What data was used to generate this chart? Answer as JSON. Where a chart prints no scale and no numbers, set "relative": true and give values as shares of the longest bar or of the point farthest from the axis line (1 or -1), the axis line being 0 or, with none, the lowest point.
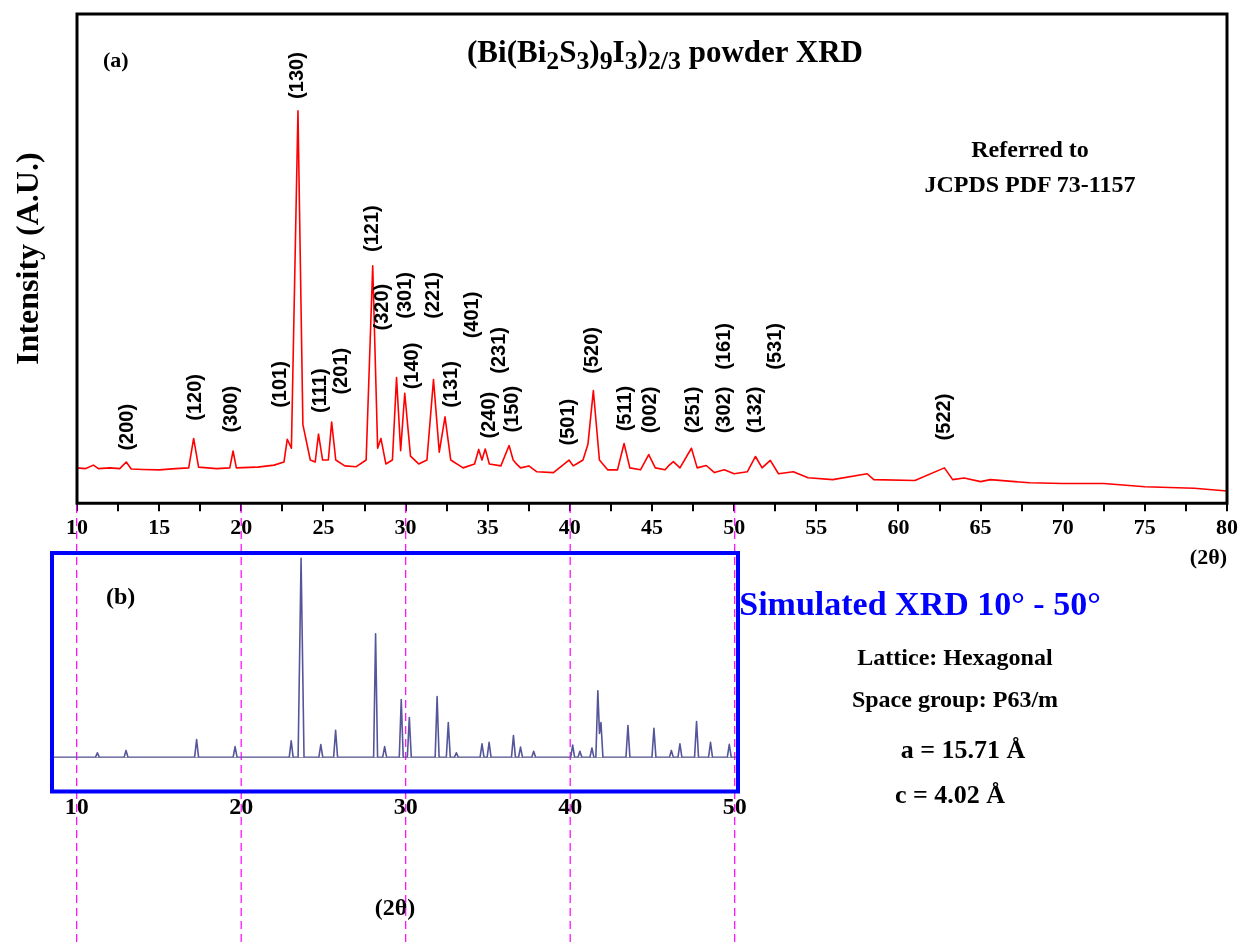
{
  "chart_data": [
    {
      "type": "line",
      "title": "(Bi(Bi$_{2}$S$_{3}$)$_{9}$I$_{3}$)$_{2/3}$ powder  XRD",
      "xlabel": "(2θ)",
      "ylabel": "Intensity (A.U.)",
      "relative": true,
      "tick_labels": "x",
      "color": "#ff0000",
      "xlim": [
        10,
        80
      ],
      "xticks": [
        10,
        {
          "value": 12.5,
          "label": null
        },
        15,
        {
          "value": 17.5,
          "label": null
        },
        20,
        {
          "value": 22.5,
          "label": null
        },
        25,
        {
          "value": 27.5,
          "label": null
        },
        30,
        {
          "value": 32.5,
          "label": null
        },
        35,
        {
          "value": 37.5,
          "label": null
        },
        40,
        {
          "value": 42.5,
          "label": null
        },
        45,
        {
          "value": 47.5,
          "label": null
        },
        50,
        {
          "value": 52.5,
          "label": null
        },
        55,
        {
          "value": 57.5,
          "label": null
        },
        60,
        {
          "value": 62.5,
          "label": null
        },
        65,
        {
          "value": 67.5,
          "label": null
        },
        70,
        {
          "value": 72.5,
          "label": null
        },
        75,
        {
          "value": 77.5,
          "label": null
        },
        80
      ],
      "x": [
        10,
        10.5,
        11,
        11.3,
        12,
        12.6,
        13.0,
        13.3,
        14,
        15,
        16,
        16.8,
        17.1,
        17.4,
        18.5,
        19.3,
        19.5,
        19.7,
        21,
        22,
        22.6,
        22.8,
        23.05,
        23.45,
        23.75,
        24.2,
        24.5,
        24.7,
        24.95,
        25.3,
        25.5,
        25.75,
        26.3,
        27,
        27.6,
        28.0,
        28.3,
        28.5,
        28.8,
        29.2,
        29.45,
        29.7,
        29.95,
        30.3,
        30.8,
        31.3,
        31.7,
        32.05,
        32.4,
        32.75,
        33.5,
        34.2,
        34.45,
        34.65,
        34.85,
        35.1,
        35.8,
        36.3,
        36.55,
        36.75,
        37.0,
        37.5,
        38,
        39,
        39.95,
        40.2,
        40.4,
        40.8,
        41.1,
        41.43,
        41.8,
        42.3,
        42.9,
        43.3,
        43.65,
        44.3,
        44.8,
        45.2,
        45.8,
        46.0,
        46.3,
        46.7,
        47.4,
        47.75,
        48.3,
        48.8,
        49.4,
        50,
        50.8,
        51.3,
        51.7,
        52.2,
        52.7,
        53.6,
        54.5,
        56,
        58.1,
        58.5,
        61,
        62.8,
        63.3,
        64,
        65,
        65.6,
        68,
        70,
        72.5,
        75,
        78,
        80
      ],
      "values": [
        0.09,
        0.088,
        0.097,
        0.088,
        0.09,
        0.088,
        0.105,
        0.087,
        0.086,
        0.085,
        0.088,
        0.09,
        0.165,
        0.092,
        0.088,
        0.09,
        0.133,
        0.09,
        0.092,
        0.097,
        0.105,
        0.163,
        0.14,
        1.0,
        0.2,
        0.11,
        0.105,
        0.176,
        0.11,
        0.11,
        0.207,
        0.11,
        0.095,
        0.093,
        0.11,
        0.605,
        0.14,
        0.165,
        0.1,
        0.11,
        0.32,
        0.134,
        0.28,
        0.12,
        0.1,
        0.11,
        0.315,
        0.13,
        0.22,
        0.11,
        0.09,
        0.1,
        0.137,
        0.11,
        0.138,
        0.1,
        0.095,
        0.147,
        0.11,
        0.1,
        0.09,
        0.095,
        0.08,
        0.078,
        0.11,
        0.095,
        0.1,
        0.11,
        0.15,
        0.287,
        0.11,
        0.085,
        0.085,
        0.152,
        0.09,
        0.085,
        0.124,
        0.09,
        0.085,
        0.095,
        0.106,
        0.09,
        0.14,
        0.09,
        0.096,
        0.078,
        0.085,
        0.075,
        0.08,
        0.119,
        0.09,
        0.109,
        0.075,
        0.08,
        0.065,
        0.06,
        0.075,
        0.06,
        0.058,
        0.09,
        0.06,
        0.064,
        0.055,
        0.06,
        0.052,
        0.05,
        0.05,
        0.042,
        0.038,
        0.031
      ],
      "annotations": [
        "(a)",
        "Referred to\nJCPDS PDF 73-1157",
        "(200)",
        "(120)",
        "(300)",
        "(101)",
        "(130)",
        "(111)",
        "(201)",
        "(121)",
        "(320)",
        "(301)",
        "(140)",
        "(221)",
        "(131)",
        "(401)",
        "(240)",
        "(231)",
        "(150)",
        "(501)",
        "(520)",
        "(511)",
        "(002)",
        "(251)",
        "(302)",
        "(161)",
        "(132)",
        "(531)",
        "(522)"
      ]
    },
    {
      "type": "line",
      "title": "Simulated XRD 10° - 50°",
      "xlabel": "(2θ)",
      "relative": true,
      "tick_labels": "x",
      "color": "#55559a",
      "xlim": [
        8.5,
        50.2
      ],
      "xticks": [
        10,
        20,
        30,
        40,
        50
      ],
      "x": [
        8.5,
        11.14,
        11.26,
        11.38,
        12.88,
        13.0,
        13.12,
        17.17,
        17.29,
        17.41,
        19.51,
        19.63,
        19.75,
        22.92,
        23.04,
        23.16,
        23.46,
        23.64,
        23.82,
        24.72,
        24.84,
        24.96,
        25.62,
        25.74,
        25.86,
        28.05,
        28.17,
        28.29,
        28.6,
        28.72,
        28.84,
        29.61,
        29.73,
        29.85,
        30.1,
        30.22,
        30.34,
        31.79,
        31.91,
        32.03,
        32.47,
        32.59,
        32.71,
        32.96,
        33.08,
        33.2,
        34.52,
        34.64,
        34.76,
        34.95,
        35.07,
        35.19,
        36.43,
        36.55,
        36.67,
        36.86,
        36.98,
        37.1,
        37.66,
        37.78,
        37.9,
        40.03,
        40.15,
        40.27,
        40.47,
        40.59,
        40.71,
        41.2,
        41.32,
        41.44,
        41.56,
        41.68,
        41.78,
        41.87,
        41.99,
        43.39,
        43.51,
        43.63,
        44.97,
        45.09,
        45.21,
        46.03,
        46.15,
        46.27,
        46.55,
        46.67,
        46.79,
        47.56,
        47.68,
        47.8,
        48.41,
        48.53,
        48.65,
        49.55,
        49.67,
        49.79,
        50.2
      ],
      "values": [
        0,
        0,
        0.023,
        0,
        0,
        0.035,
        0,
        0,
        0.09,
        0,
        0,
        0.054,
        0,
        0,
        0.083,
        0,
        0,
        1.0,
        0,
        0,
        0.064,
        0,
        0,
        0.136,
        0,
        0,
        0.62,
        0,
        0,
        0.054,
        0,
        0,
        0.29,
        0,
        0,
        0.2,
        0,
        0,
        0.305,
        0,
        0,
        0.175,
        0,
        0,
        0.023,
        0,
        0,
        0.068,
        0,
        0,
        0.076,
        0,
        0,
        0.11,
        0,
        0,
        0.052,
        0,
        0,
        0.031,
        0,
        0,
        0.062,
        0,
        0,
        0.031,
        0,
        0,
        0.047,
        0,
        0,
        0.334,
        0.12,
        0.175,
        0,
        0,
        0.16,
        0,
        0,
        0.146,
        0,
        0,
        0.035,
        0,
        0,
        0.068,
        0,
        0,
        0.18,
        0,
        0,
        0.076,
        0,
        0,
        0.066,
        0,
        0
      ],
      "ref_lines": [
        {
          "axis": "x",
          "value": 10,
          "color": "#ff00ff",
          "line_style": "dashed"
        },
        {
          "axis": "x",
          "value": 20,
          "color": "#ff00ff",
          "line_style": "dashed"
        },
        {
          "axis": "x",
          "value": 30,
          "color": "#ff00ff",
          "line_style": "dashed"
        },
        {
          "axis": "x",
          "value": 40,
          "color": "#ff00ff",
          "line_style": "dashed"
        },
        {
          "axis": "x",
          "value": 50,
          "color": "#ff00ff",
          "line_style": "dashed"
        }
      ],
      "annotations": [
        "(b)",
        "Lattice: Hexagonal",
        "Space group: P63/m",
        "a = 15.71 Å",
        "c = 4.02 Å"
      ]
    }
  ]
}
